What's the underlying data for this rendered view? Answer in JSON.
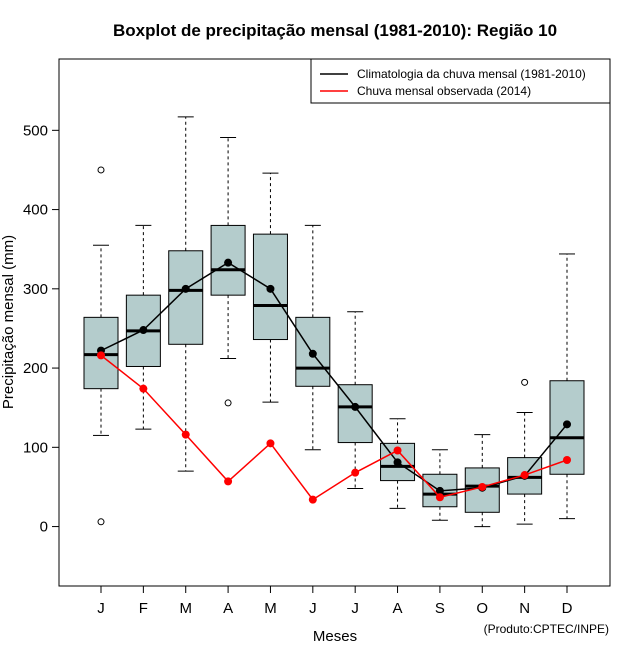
{
  "chart_data": {
    "type": "boxplot",
    "title": "Boxplot de precipitação mensal (1981-2010): Região 10",
    "xlabel": "Meses",
    "ylabel": "Precipitação mensal (mm)",
    "ylim": [
      -75,
      590
    ],
    "yticks": [
      0,
      100,
      200,
      300,
      400,
      500
    ],
    "categories": [
      "J",
      "F",
      "M",
      "A",
      "M",
      "J",
      "J",
      "A",
      "S",
      "O",
      "N",
      "D"
    ],
    "boxes": [
      {
        "min": 115,
        "q1": 174,
        "median": 217,
        "q3": 264,
        "max": 355,
        "outliers": [
          450,
          6
        ]
      },
      {
        "min": 123,
        "q1": 202,
        "median": 247,
        "q3": 292,
        "max": 380,
        "outliers": []
      },
      {
        "min": 70,
        "q1": 230,
        "median": 298,
        "q3": 348,
        "max": 517,
        "outliers": []
      },
      {
        "min": 212,
        "q1": 292,
        "median": 324,
        "q3": 380,
        "max": 491,
        "outliers": [
          156
        ]
      },
      {
        "min": 157,
        "q1": 236,
        "median": 279,
        "q3": 369,
        "max": 446,
        "outliers": []
      },
      {
        "min": 97,
        "q1": 177,
        "median": 200,
        "q3": 264,
        "max": 380,
        "outliers": []
      },
      {
        "min": 48,
        "q1": 106,
        "median": 151,
        "q3": 179,
        "max": 271,
        "outliers": []
      },
      {
        "min": 23,
        "q1": 58,
        "median": 76,
        "q3": 105,
        "max": 136,
        "outliers": []
      },
      {
        "min": 8,
        "q1": 25,
        "median": 41,
        "q3": 66,
        "max": 97,
        "outliers": []
      },
      {
        "min": 0,
        "q1": 18,
        "median": 51,
        "q3": 74,
        "max": 116,
        "outliers": []
      },
      {
        "min": 3,
        "q1": 41,
        "median": 62,
        "q3": 87,
        "max": 144,
        "outliers": [
          182
        ]
      },
      {
        "min": 10,
        "q1": 66,
        "median": 112,
        "q3": 184,
        "max": 344,
        "outliers": []
      }
    ],
    "series": [
      {
        "name": "Climatologia da chuva mensal (1981-2010)",
        "color": "#000000",
        "values": [
          222,
          248,
          300,
          333,
          300,
          218,
          151,
          81,
          45,
          49,
          64,
          129
        ]
      },
      {
        "name": "Chuva mensal observada (2014)",
        "color": "#ff0000",
        "values": [
          216,
          174,
          116,
          57,
          105,
          34,
          68,
          96,
          37,
          50,
          65,
          84
        ]
      }
    ],
    "box_fill": "#b4cccc",
    "legend_position": "top-right"
  },
  "credit": "(Produto:CPTEC/INPE)"
}
